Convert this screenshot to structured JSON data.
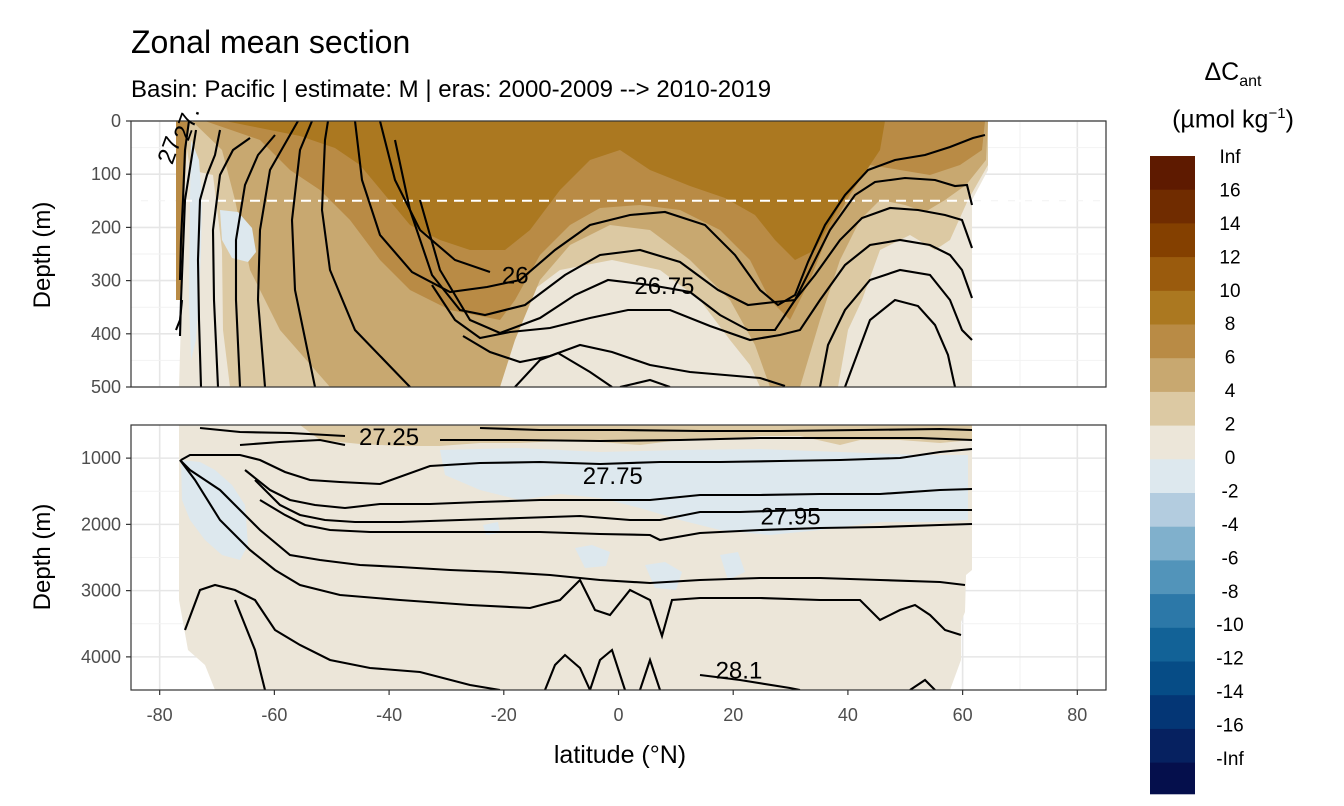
{
  "chart_data": {
    "type": "heatmap",
    "title": "Zonal mean section",
    "subtitle": "Basin: Pacific | estimate: M  | eras: 2000-2009 --> 2010-2019",
    "xlabel": "latitude (°N)",
    "ylabel": "Depth (m)",
    "xlim": [
      -85,
      85
    ],
    "x_ticks": [
      "-80",
      "-60",
      "-40",
      "-20",
      "0",
      "20",
      "40",
      "60",
      "80"
    ],
    "x_tick_values": [
      -80,
      -60,
      -40,
      -20,
      0,
      20,
      40,
      60,
      80
    ],
    "grid": true,
    "dashed_reference_depth": 150,
    "panels": [
      {
        "name": "upper",
        "ylim": [
          500,
          0
        ],
        "y_ticks": [
          "0",
          "100",
          "200",
          "300",
          "400",
          "500"
        ],
        "y_tick_values": [
          0,
          100,
          200,
          300,
          400,
          500
        ]
      },
      {
        "name": "lower",
        "ylim": [
          4500,
          500
        ],
        "y_ticks": [
          "1000",
          "2000",
          "3000",
          "4000"
        ],
        "y_tick_values": [
          1000,
          2000,
          3000,
          4000
        ]
      }
    ],
    "isopycnal_labels": [
      {
        "text": "26",
        "panel": "upper",
        "lat": -18,
        "depth": 305
      },
      {
        "text": "26.75",
        "panel": "upper",
        "lat": 8,
        "depth": 325
      },
      {
        "text": "27.25",
        "panel": "lower",
        "lat": -40,
        "depth": 800
      },
      {
        "text": "27.75",
        "panel": "lower",
        "lat": -1,
        "depth": 1390
      },
      {
        "text": "27.95",
        "panel": "lower",
        "lat": 30,
        "depth": 2000
      },
      {
        "text": "28.1",
        "panel": "lower",
        "lat": 21,
        "depth": 4330
      },
      {
        "text": "27",
        "panel": "upper",
        "lat": -77,
        "depth": 60
      },
      {
        "text": "27.",
        "panel": "upper",
        "lat": -74,
        "depth": 10
      }
    ],
    "legend": {
      "title_main": "ΔC",
      "title_sub": "ant",
      "title_unit": "(µmol kg",
      "title_sup": "−1",
      "title_close": ")",
      "labels": [
        "Inf",
        "16",
        "14",
        "12",
        "10",
        "8",
        "6",
        "4",
        "2",
        "0",
        "-2",
        "-4",
        "-6",
        "-8",
        "-10",
        "-12",
        "-14",
        "-16",
        "-Inf"
      ],
      "colors": [
        "#5e1a00",
        "#702c00",
        "#844000",
        "#9a5b0d",
        "#ab7820",
        "#b98b45",
        "#c8a870",
        "#dcc9a3",
        "#ece6d9",
        "#dde8ee",
        "#b3ccdf",
        "#80b0cc",
        "#5294ba",
        "#2c78a8",
        "#126297",
        "#064c86",
        "#043675",
        "#062160",
        "#050f4c"
      ]
    }
  }
}
